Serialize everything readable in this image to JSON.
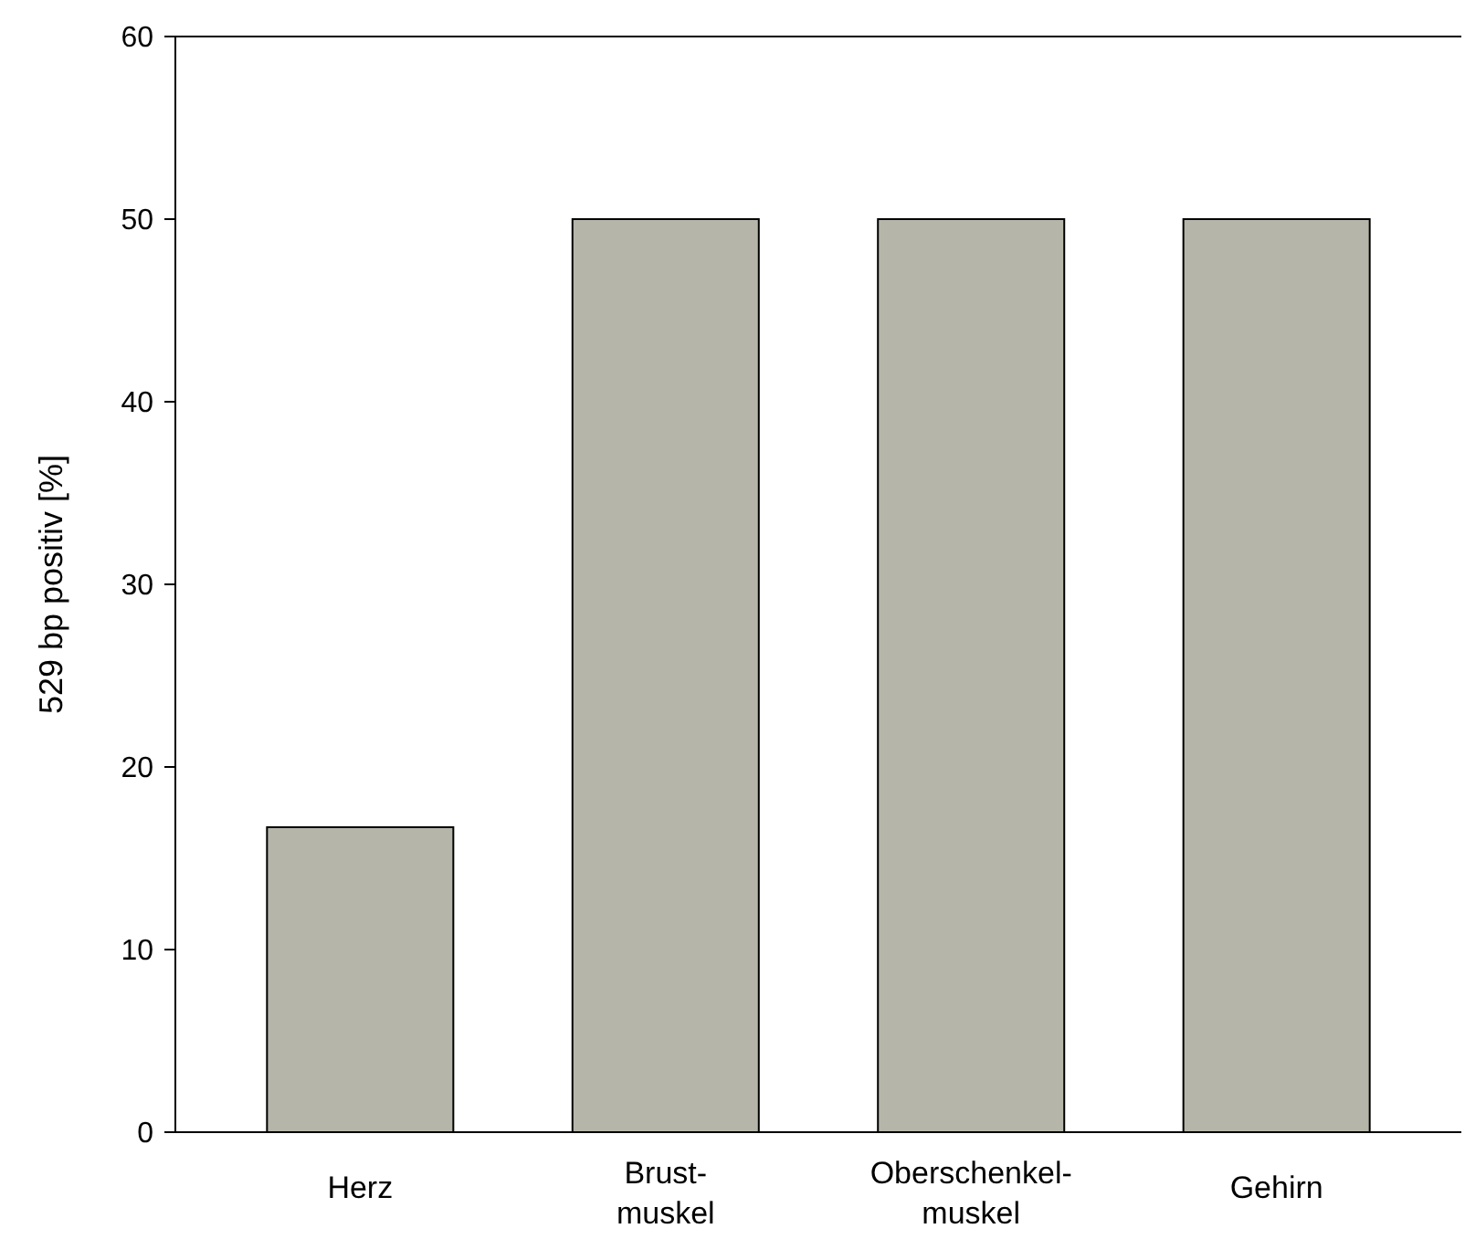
{
  "chart_data": {
    "type": "bar",
    "ylabel": "529 bp positiv [%]",
    "categories": [
      "Herz",
      "Brust-\nmuskel",
      "Oberschenkel-\nmuskel",
      "Gehirn"
    ],
    "values": [
      16.7,
      50,
      50,
      50
    ],
    "color": "#b5b5a9",
    "ylim": [
      0,
      60
    ],
    "yticks": [
      0,
      10,
      20,
      30,
      40,
      50,
      60
    ],
    "grid": false
  }
}
